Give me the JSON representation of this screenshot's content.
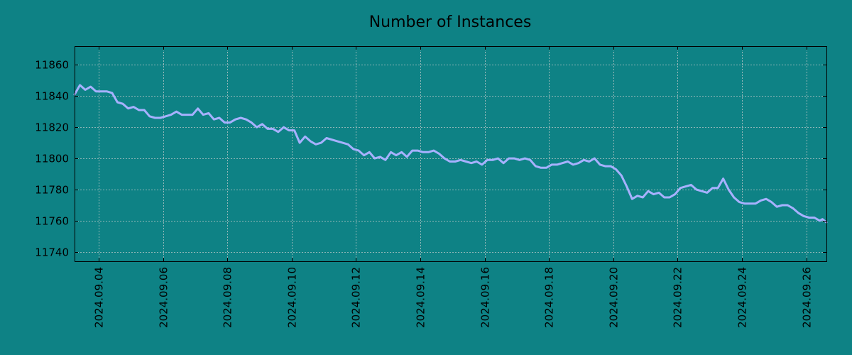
{
  "chart_data": {
    "type": "line",
    "title": "Number of Instances",
    "xlabel": "",
    "ylabel": "",
    "grid": true,
    "colors": {
      "background": "#0e8285",
      "line": "#a7b1ff",
      "grid": "#b8c6c6"
    },
    "x_range": [
      "2024-09-03T06:00",
      "2024-09-26T15:00"
    ],
    "ylim": [
      11734,
      11872
    ],
    "x_ticks": [
      "2024.09.04",
      "2024.09.06",
      "2024.09.08",
      "2024.09.10",
      "2024.09.12",
      "2024.09.14",
      "2024.09.16",
      "2024.09.18",
      "2024.09.20",
      "2024.09.22",
      "2024.09.24",
      "2024.09.26"
    ],
    "y_ticks": [
      11740,
      11760,
      11780,
      11800,
      11820,
      11840,
      11860
    ],
    "series": [
      {
        "points": [
          [
            "2024-09-03T06:00",
            11841
          ],
          [
            "2024-09-03T10:00",
            11847
          ],
          [
            "2024-09-03T14:00",
            11844
          ],
          [
            "2024-09-03T18:00",
            11846
          ],
          [
            "2024-09-03T22:00",
            11843
          ],
          [
            "2024-09-04T02:00",
            11843
          ],
          [
            "2024-09-04T06:00",
            11843
          ],
          [
            "2024-09-04T10:00",
            11842
          ],
          [
            "2024-09-04T14:00",
            11836
          ],
          [
            "2024-09-04T18:00",
            11835
          ],
          [
            "2024-09-04T22:00",
            11832
          ],
          [
            "2024-09-05T02:00",
            11833
          ],
          [
            "2024-09-05T06:00",
            11831
          ],
          [
            "2024-09-05T10:00",
            11831
          ],
          [
            "2024-09-05T14:00",
            11827
          ],
          [
            "2024-09-05T18:00",
            11826
          ],
          [
            "2024-09-05T22:00",
            11826
          ],
          [
            "2024-09-06T02:00",
            11827
          ],
          [
            "2024-09-06T06:00",
            11828
          ],
          [
            "2024-09-06T10:00",
            11830
          ],
          [
            "2024-09-06T14:00",
            11828
          ],
          [
            "2024-09-06T18:00",
            11828
          ],
          [
            "2024-09-06T22:00",
            11828
          ],
          [
            "2024-09-07T02:00",
            11832
          ],
          [
            "2024-09-07T06:00",
            11828
          ],
          [
            "2024-09-07T10:00",
            11829
          ],
          [
            "2024-09-07T14:00",
            11825
          ],
          [
            "2024-09-07T18:00",
            11826
          ],
          [
            "2024-09-07T22:00",
            11823
          ],
          [
            "2024-09-08T02:00",
            11823
          ],
          [
            "2024-09-08T06:00",
            11825
          ],
          [
            "2024-09-08T10:00",
            11826
          ],
          [
            "2024-09-08T14:00",
            11825
          ],
          [
            "2024-09-08T18:00",
            11823
          ],
          [
            "2024-09-08T22:00",
            11820
          ],
          [
            "2024-09-09T02:00",
            11822
          ],
          [
            "2024-09-09T06:00",
            11819
          ],
          [
            "2024-09-09T10:00",
            11819
          ],
          [
            "2024-09-09T14:00",
            11817
          ],
          [
            "2024-09-09T18:00",
            11820
          ],
          [
            "2024-09-09T22:00",
            11818
          ],
          [
            "2024-09-10T02:00",
            11818
          ],
          [
            "2024-09-10T06:00",
            11810
          ],
          [
            "2024-09-10T10:00",
            11814
          ],
          [
            "2024-09-10T14:00",
            11811
          ],
          [
            "2024-09-10T18:00",
            11809
          ],
          [
            "2024-09-10T22:00",
            11810
          ],
          [
            "2024-09-11T02:00",
            11813
          ],
          [
            "2024-09-11T06:00",
            11812
          ],
          [
            "2024-09-11T10:00",
            11811
          ],
          [
            "2024-09-11T14:00",
            11810
          ],
          [
            "2024-09-11T18:00",
            11809
          ],
          [
            "2024-09-11T22:00",
            11806
          ],
          [
            "2024-09-12T02:00",
            11805
          ],
          [
            "2024-09-12T06:00",
            11802
          ],
          [
            "2024-09-12T10:00",
            11804
          ],
          [
            "2024-09-12T14:00",
            11800
          ],
          [
            "2024-09-12T18:00",
            11801
          ],
          [
            "2024-09-12T22:00",
            11799
          ],
          [
            "2024-09-13T02:00",
            11804
          ],
          [
            "2024-09-13T06:00",
            11802
          ],
          [
            "2024-09-13T10:00",
            11804
          ],
          [
            "2024-09-13T14:00",
            11801
          ],
          [
            "2024-09-13T18:00",
            11805
          ],
          [
            "2024-09-13T22:00",
            11805
          ],
          [
            "2024-09-14T02:00",
            11804
          ],
          [
            "2024-09-14T06:00",
            11804
          ],
          [
            "2024-09-14T10:00",
            11805
          ],
          [
            "2024-09-14T14:00",
            11803
          ],
          [
            "2024-09-14T18:00",
            11800
          ],
          [
            "2024-09-14T22:00",
            11798
          ],
          [
            "2024-09-15T02:00",
            11798
          ],
          [
            "2024-09-15T06:00",
            11799
          ],
          [
            "2024-09-15T10:00",
            11798
          ],
          [
            "2024-09-15T14:00",
            11797
          ],
          [
            "2024-09-15T18:00",
            11798
          ],
          [
            "2024-09-15T22:00",
            11796
          ],
          [
            "2024-09-16T02:00",
            11799
          ],
          [
            "2024-09-16T06:00",
            11799
          ],
          [
            "2024-09-16T10:00",
            11800
          ],
          [
            "2024-09-16T14:00",
            11797
          ],
          [
            "2024-09-16T18:00",
            11800
          ],
          [
            "2024-09-16T22:00",
            11800
          ],
          [
            "2024-09-17T02:00",
            11799
          ],
          [
            "2024-09-17T06:00",
            11800
          ],
          [
            "2024-09-17T10:00",
            11799
          ],
          [
            "2024-09-17T14:00",
            11795
          ],
          [
            "2024-09-17T18:00",
            11794
          ],
          [
            "2024-09-17T22:00",
            11794
          ],
          [
            "2024-09-18T02:00",
            11796
          ],
          [
            "2024-09-18T06:00",
            11796
          ],
          [
            "2024-09-18T10:00",
            11797
          ],
          [
            "2024-09-18T14:00",
            11798
          ],
          [
            "2024-09-18T18:00",
            11796
          ],
          [
            "2024-09-18T22:00",
            11797
          ],
          [
            "2024-09-19T02:00",
            11799
          ],
          [
            "2024-09-19T06:00",
            11798
          ],
          [
            "2024-09-19T10:00",
            11800
          ],
          [
            "2024-09-19T14:00",
            11796
          ],
          [
            "2024-09-19T18:00",
            11795
          ],
          [
            "2024-09-19T22:00",
            11795
          ],
          [
            "2024-09-20T02:00",
            11793
          ],
          [
            "2024-09-20T06:00",
            11789
          ],
          [
            "2024-09-20T10:00",
            11782
          ],
          [
            "2024-09-20T14:00",
            11774
          ],
          [
            "2024-09-20T18:00",
            11776
          ],
          [
            "2024-09-20T22:00",
            11775
          ],
          [
            "2024-09-21T02:00",
            11779
          ],
          [
            "2024-09-21T06:00",
            11777
          ],
          [
            "2024-09-21T10:00",
            11778
          ],
          [
            "2024-09-21T14:00",
            11775
          ],
          [
            "2024-09-21T18:00",
            11775
          ],
          [
            "2024-09-21T22:00",
            11777
          ],
          [
            "2024-09-22T02:00",
            11781
          ],
          [
            "2024-09-22T06:00",
            11782
          ],
          [
            "2024-09-22T10:00",
            11783
          ],
          [
            "2024-09-22T14:00",
            11780
          ],
          [
            "2024-09-22T18:00",
            11779
          ],
          [
            "2024-09-22T22:00",
            11778
          ],
          [
            "2024-09-23T02:00",
            11781
          ],
          [
            "2024-09-23T06:00",
            11781
          ],
          [
            "2024-09-23T10:00",
            11787
          ],
          [
            "2024-09-23T14:00",
            11780
          ],
          [
            "2024-09-23T18:00",
            11775
          ],
          [
            "2024-09-23T22:00",
            11772
          ],
          [
            "2024-09-24T02:00",
            11771
          ],
          [
            "2024-09-24T06:00",
            11771
          ],
          [
            "2024-09-24T10:00",
            11771
          ],
          [
            "2024-09-24T14:00",
            11773
          ],
          [
            "2024-09-24T18:00",
            11774
          ],
          [
            "2024-09-24T22:00",
            11772
          ],
          [
            "2024-09-25T02:00",
            11769
          ],
          [
            "2024-09-25T06:00",
            11770
          ],
          [
            "2024-09-25T10:00",
            11770
          ],
          [
            "2024-09-25T14:00",
            11768
          ],
          [
            "2024-09-25T18:00",
            11765
          ],
          [
            "2024-09-25T22:00",
            11763
          ],
          [
            "2024-09-26T02:00",
            11762
          ],
          [
            "2024-09-26T06:00",
            11762
          ],
          [
            "2024-09-26T10:00",
            11760
          ],
          [
            "2024-09-26T12:00",
            11761
          ],
          [
            "2024-09-26T15:00",
            11759
          ]
        ]
      }
    ]
  }
}
